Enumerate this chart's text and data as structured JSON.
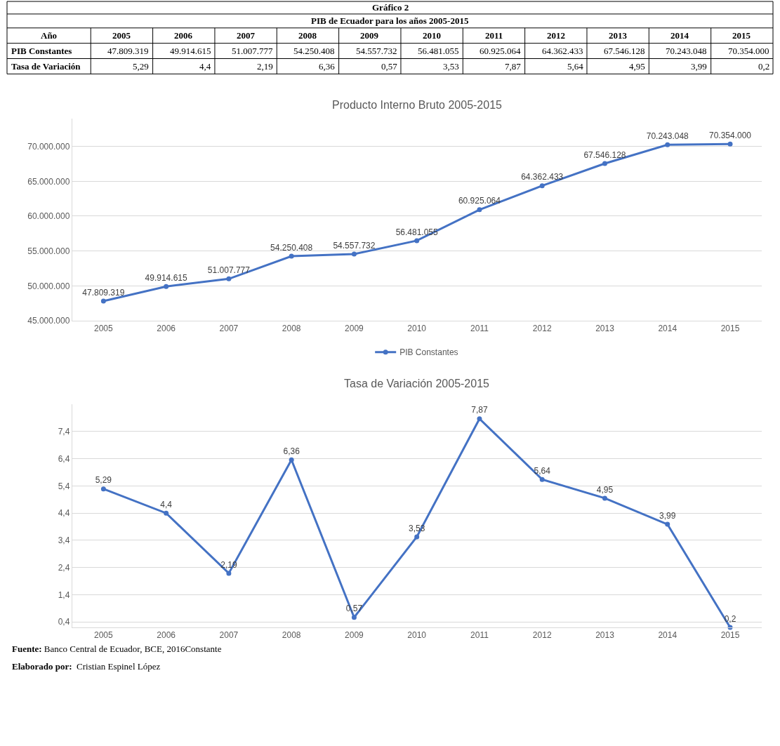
{
  "chart_data": [
    {
      "type": "line",
      "title": "Producto Interno Bruto 2005-2015",
      "categories": [
        "2005",
        "2006",
        "2007",
        "2008",
        "2009",
        "2010",
        "2011",
        "2012",
        "2013",
        "2014",
        "2015"
      ],
      "series": [
        {
          "name": "PIB Constantes",
          "color": "#4472c4",
          "values": [
            47809319,
            49914615,
            51007777,
            54250408,
            54557732,
            56481055,
            60925064,
            64362433,
            67546128,
            70243048,
            70354000
          ],
          "value_labels": [
            "47.809.319",
            "49.914.615",
            "51.007.777",
            "54.250.408",
            "54.557.732",
            "56.481.055",
            "60.925.064",
            "64.362.433",
            "67.546.128",
            "70.243.048",
            "70.354.000"
          ]
        }
      ],
      "ylim": [
        45000000,
        74000000
      ],
      "yticks": [
        {
          "value": 45000000,
          "label": "45.000.000"
        },
        {
          "value": 50000000,
          "label": "50.000.000"
        },
        {
          "value": 55000000,
          "label": "55.000.000"
        },
        {
          "value": 60000000,
          "label": "60.000.000"
        },
        {
          "value": 65000000,
          "label": "65.000.000"
        },
        {
          "value": 70000000,
          "label": "70.000.000"
        }
      ],
      "grid": "y",
      "legend": "bottom",
      "marker": "circle",
      "annotations": [
        "Gráfico 2",
        "PIB de Ecuador para los años 2005-2015",
        "Año"
      ]
    },
    {
      "type": "line",
      "title": "Tasa de Variación 2005-2015",
      "categories": [
        "2005",
        "2006",
        "2007",
        "2008",
        "2009",
        "2010",
        "2011",
        "2012",
        "2013",
        "2014",
        "2015"
      ],
      "series": [
        {
          "name": "Tasa de Variación",
          "color": "#4472c4",
          "values": [
            5.29,
            4.4,
            2.19,
            6.36,
            0.57,
            3.53,
            7.87,
            5.64,
            4.95,
            3.99,
            0.2
          ],
          "value_labels": [
            "5,29",
            "4,4",
            "2,19",
            "6,36",
            "0,57",
            "3,53",
            "7,87",
            "5,64",
            "4,95",
            "3,99",
            "0,2"
          ]
        }
      ],
      "ylim": [
        0.2,
        8.4
      ],
      "yticks": [
        {
          "value": 0.4,
          "label": "0,4"
        },
        {
          "value": 1.4,
          "label": "1,4"
        },
        {
          "value": 2.4,
          "label": "2,4"
        },
        {
          "value": 3.4,
          "label": "3,4"
        },
        {
          "value": 4.4,
          "label": "4,4"
        },
        {
          "value": 5.4,
          "label": "5,4"
        },
        {
          "value": 6.4,
          "label": "6,4"
        },
        {
          "value": 7.4,
          "label": "7,4"
        }
      ],
      "grid": "y",
      "marker": "circle",
      "annotations": [
        "Fuente: Banco Central de Ecuador, BCE, 2016Constante",
        "Elaborado por:  Cristian Espinel López"
      ]
    }
  ]
}
